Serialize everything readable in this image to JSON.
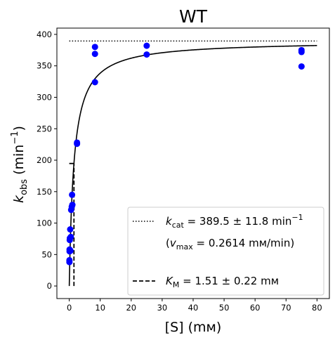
{
  "chart_data": {
    "type": "scatter",
    "title": "WT",
    "xlabel": "[S] (mм)",
    "ylabel": "k_obs (min⁻¹)",
    "xlim": [
      -4,
      84
    ],
    "ylim": [
      -20,
      410
    ],
    "xticks": [
      0,
      10,
      20,
      30,
      40,
      50,
      60,
      70,
      80
    ],
    "yticks": [
      0,
      50,
      100,
      150,
      200,
      250,
      300,
      350,
      400
    ],
    "grid": false,
    "legend_position": "lower-right",
    "series": [
      {
        "kind": "points",
        "color": "#0000ff",
        "x": [
          0.05,
          0.05,
          0.1,
          0.1,
          0.15,
          0.2,
          0.3,
          0.4,
          0.5,
          0.6,
          0.8,
          0.9,
          1.0,
          2.5,
          2.5,
          8.3,
          8.3,
          8.3,
          25,
          25,
          75,
          75,
          75
        ],
        "y": [
          38,
          41,
          55,
          58,
          73,
          76,
          90,
          56,
          78,
          121,
          126,
          145,
          129,
          226,
          228,
          324,
          369,
          380,
          368,
          382,
          349,
          372,
          375
        ]
      },
      {
        "kind": "fit",
        "color": "#000000",
        "style": "solid",
        "model": "michaelis-menten",
        "kcat": 389.5,
        "km": 1.51,
        "x_range": [
          0,
          80
        ]
      },
      {
        "kind": "kcat-line",
        "color": "#000000",
        "style": "dotted",
        "y": 389.5,
        "x_range": [
          0,
          80
        ],
        "legend": "= 389.5 ± 11.8 min"
      },
      {
        "kind": "km-line",
        "color": "#000000",
        "style": "dashed",
        "x": 1.51,
        "y_range": [
          0,
          194.75
        ],
        "legend": "= 1.51 ± 0.22 mм"
      }
    ],
    "legend": {
      "kcat_symbol": "k",
      "kcat_sub": "cat",
      "kcat_text": " = 389.5 ± 11.8 min",
      "kcat_sup": "−1",
      "vmax_open": "(",
      "vmax_symbol": "v",
      "vmax_sub": "max",
      "vmax_text": " = 0.2614 mм/min)",
      "km_symbol": "K",
      "km_sub": "M",
      "km_text": " = 1.51 ± 0.22 mм"
    },
    "axis_text": {
      "x_title": "[S] (mм)",
      "y_symbol": "k",
      "y_sub": "obs",
      "y_rest": " (min",
      "y_sup": "−1",
      "y_close": ")"
    }
  }
}
